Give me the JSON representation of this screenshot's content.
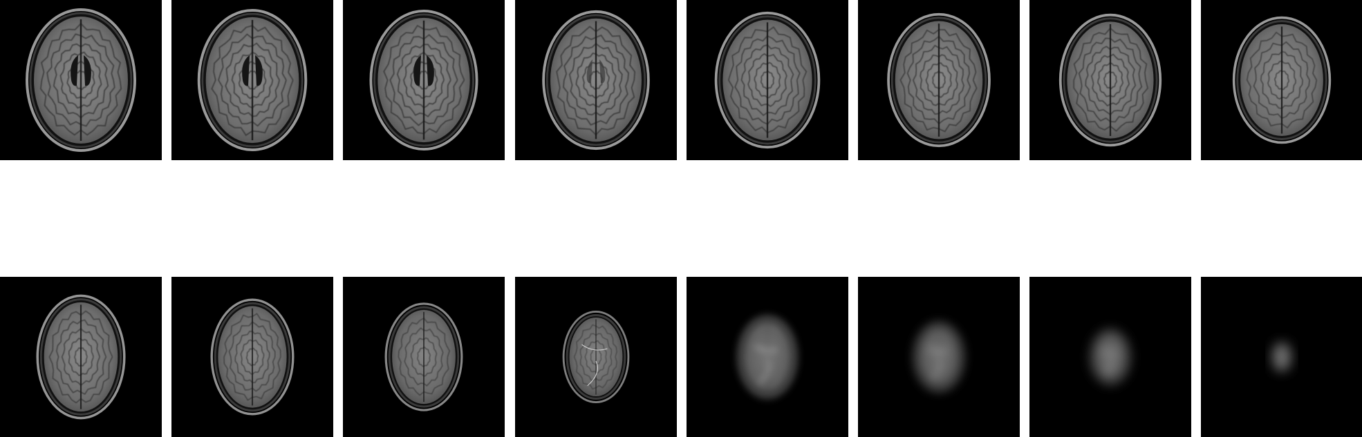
{
  "figure": {
    "rows": 2,
    "columns": 8,
    "background": "#ffffff",
    "tile_background": "#000000"
  },
  "slices": [
    {
      "index": 1,
      "row": 1,
      "col": 1,
      "level": "inferior",
      "ventricles": "visible",
      "brain_scale": 1.0,
      "fade": 0.0
    },
    {
      "index": 2,
      "row": 1,
      "col": 2,
      "level": "inferior",
      "ventricles": "visible",
      "brain_scale": 0.99,
      "fade": 0.0
    },
    {
      "index": 3,
      "row": 1,
      "col": 3,
      "level": "inferior",
      "ventricles": "visible",
      "brain_scale": 0.98,
      "fade": 0.0
    },
    {
      "index": 4,
      "row": 1,
      "col": 4,
      "level": "mid",
      "ventricles": "faint",
      "brain_scale": 0.97,
      "fade": 0.0
    },
    {
      "index": 5,
      "row": 1,
      "col": 5,
      "level": "mid",
      "ventricles": "none",
      "brain_scale": 0.95,
      "fade": 0.0
    },
    {
      "index": 6,
      "row": 1,
      "col": 6,
      "level": "mid",
      "ventricles": "none",
      "brain_scale": 0.93,
      "fade": 0.0
    },
    {
      "index": 7,
      "row": 1,
      "col": 7,
      "level": "mid",
      "ventricles": "none",
      "brain_scale": 0.92,
      "fade": 0.0
    },
    {
      "index": 8,
      "row": 1,
      "col": 8,
      "level": "mid",
      "ventricles": "none",
      "brain_scale": 0.88,
      "fade": 0.0
    },
    {
      "index": 9,
      "row": 2,
      "col": 1,
      "level": "superior",
      "ventricles": "none",
      "brain_scale": 0.86,
      "fade": 0.05
    },
    {
      "index": 10,
      "row": 2,
      "col": 2,
      "level": "superior",
      "ventricles": "none",
      "brain_scale": 0.8,
      "fade": 0.1
    },
    {
      "index": 11,
      "row": 2,
      "col": 3,
      "level": "superior",
      "ventricles": "none",
      "brain_scale": 0.74,
      "fade": 0.2
    },
    {
      "index": 12,
      "row": 2,
      "col": 4,
      "level": "vertex",
      "ventricles": "none",
      "brain_scale": 0.62,
      "fade": 0.3
    },
    {
      "index": 13,
      "row": 2,
      "col": 5,
      "level": "vertex",
      "ventricles": "none",
      "brain_scale": 0.55,
      "fade": 0.45
    },
    {
      "index": 14,
      "row": 2,
      "col": 6,
      "level": "vertex",
      "ventricles": "none",
      "brain_scale": 0.46,
      "fade": 0.6
    },
    {
      "index": 15,
      "row": 2,
      "col": 7,
      "level": "vertex",
      "ventricles": "none",
      "brain_scale": 0.36,
      "fade": 0.7
    },
    {
      "index": 16,
      "row": 2,
      "col": 8,
      "level": "vertex",
      "ventricles": "none",
      "brain_scale": 0.24,
      "fade": 0.8
    }
  ]
}
